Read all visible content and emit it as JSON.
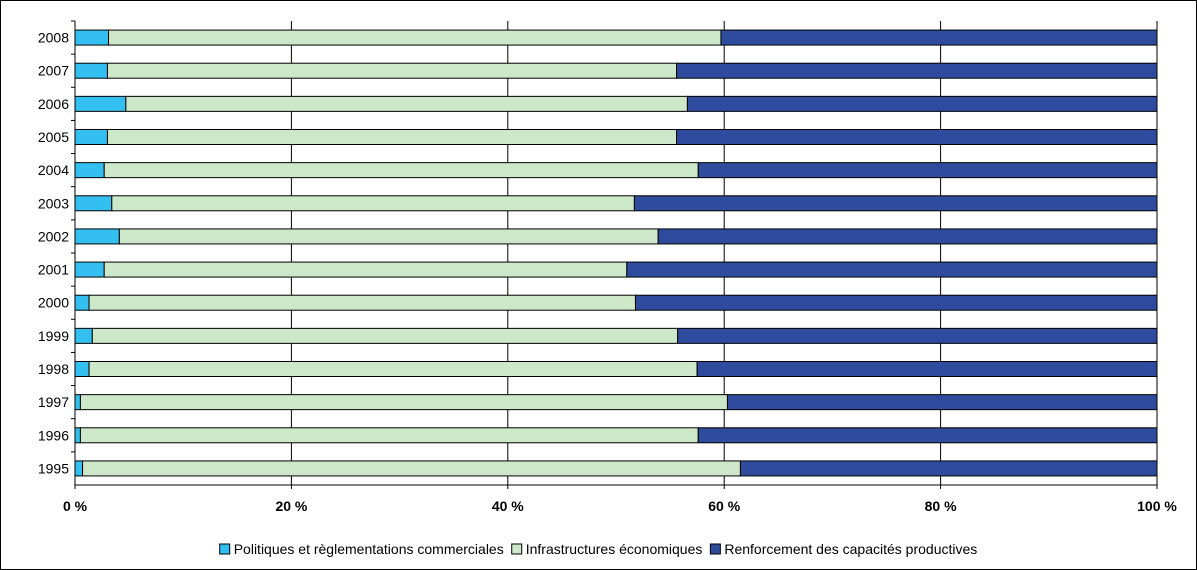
{
  "chart_data": {
    "type": "bar",
    "orientation": "horizontal",
    "stacked": "percent",
    "categories": [
      "1995",
      "1996",
      "1997",
      "1998",
      "1999",
      "2000",
      "2001",
      "2002",
      "2003",
      "2004",
      "2005",
      "2006",
      "2007",
      "2008"
    ],
    "series": [
      {
        "name": "Politiques et règlementations commerciales",
        "color": "#33BFEF",
        "values": [
          0.7,
          0.5,
          0.5,
          1.3,
          1.6,
          1.3,
          2.7,
          4.1,
          3.4,
          2.7,
          3.0,
          4.7,
          3.0,
          3.1
        ]
      },
      {
        "name": "Infrastructures économiques",
        "color": "#CCE8C8",
        "values": [
          60.8,
          57.1,
          59.8,
          56.2,
          54.1,
          50.5,
          48.3,
          49.8,
          48.3,
          54.9,
          52.6,
          51.9,
          52.6,
          56.6
        ]
      },
      {
        "name": "Renforcement des capacités productives",
        "color": "#2E4B9E",
        "values": [
          38.5,
          42.4,
          39.7,
          42.5,
          44.3,
          48.2,
          49.0,
          46.1,
          48.3,
          42.4,
          44.4,
          43.4,
          44.4,
          40.3
        ]
      }
    ],
    "xlim": [
      0,
      100
    ],
    "x_ticks": [
      {
        "value": 0,
        "label": "0 %"
      },
      {
        "value": 20,
        "label": "20 %"
      },
      {
        "value": 40,
        "label": "40 %"
      },
      {
        "value": 60,
        "label": "60 %"
      },
      {
        "value": 80,
        "label": "80 %"
      },
      {
        "value": 100,
        "label": "100 %"
      }
    ],
    "grid": "vertical",
    "legend": "bottom",
    "title": "",
    "xlabel": "",
    "ylabel": ""
  }
}
